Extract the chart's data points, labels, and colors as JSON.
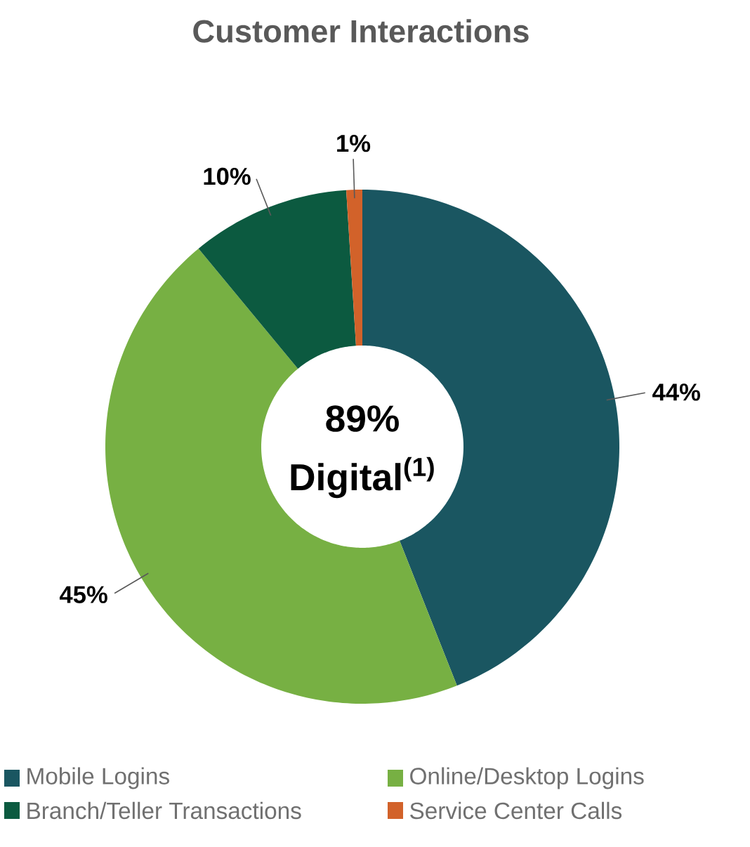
{
  "chart_data": {
    "type": "donut",
    "title": "Customer Interactions",
    "categories": [
      "Mobile Logins",
      "Online/Desktop Logins",
      "Branch/Teller Transactions",
      "Service Center Calls"
    ],
    "values": [
      44,
      45,
      10,
      1
    ],
    "value_labels": [
      "44%",
      "45%",
      "10%",
      "1%"
    ],
    "colors": [
      "#1a5661",
      "#77b043",
      "#0c5a40",
      "#d2622a"
    ],
    "annotations": [
      "89%",
      "Digital$^{(1)}$"
    ],
    "legend": "bottom"
  }
}
